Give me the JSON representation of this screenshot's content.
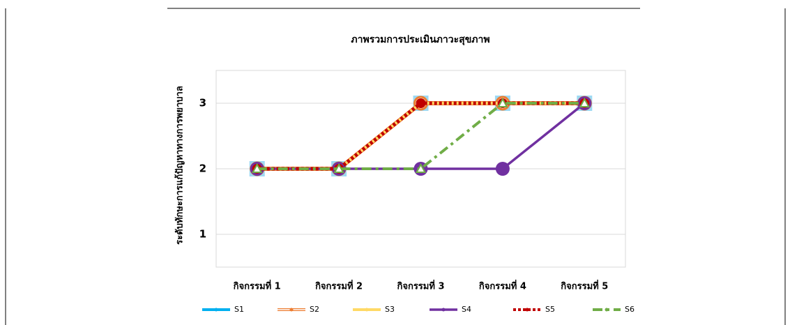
{
  "chart_data": {
    "type": "line",
    "title": "ภาพรวมการประเมินภาวะสุขภาพ",
    "y_label": "ระดับทักษะการแก้ปัญหาทางการพยาบาล",
    "categories": [
      "กิจกรรมที่ 1",
      "กิจกรรมที่ 2",
      "กิจกรรมที่ 3",
      "กิจกรรมที่ 4",
      "กิจกรรมที่ 5"
    ],
    "series": [
      {
        "name": "S1",
        "color": "#00b0f0",
        "values": [
          2,
          2,
          3,
          3,
          3
        ]
      },
      {
        "name": "S2",
        "color": "#ed7d31",
        "values": [
          2,
          2,
          3,
          3,
          3
        ]
      },
      {
        "name": "S3",
        "color": "#ffd966",
        "values": [
          2,
          2,
          3,
          3,
          3
        ]
      },
      {
        "name": "S4",
        "color": "#7030a0",
        "values": [
          2,
          2,
          2,
          2,
          3
        ]
      },
      {
        "name": "S5",
        "color": "#c00000",
        "values": [
          2,
          2,
          3,
          3,
          3
        ]
      },
      {
        "name": "S6",
        "color": "#70ad47",
        "values": [
          2,
          2,
          2,
          3,
          3
        ]
      }
    ],
    "ylim": [
      0.5,
      3.5
    ],
    "yticks": [
      1,
      2,
      3
    ],
    "grid": true,
    "legend": "bottom"
  }
}
